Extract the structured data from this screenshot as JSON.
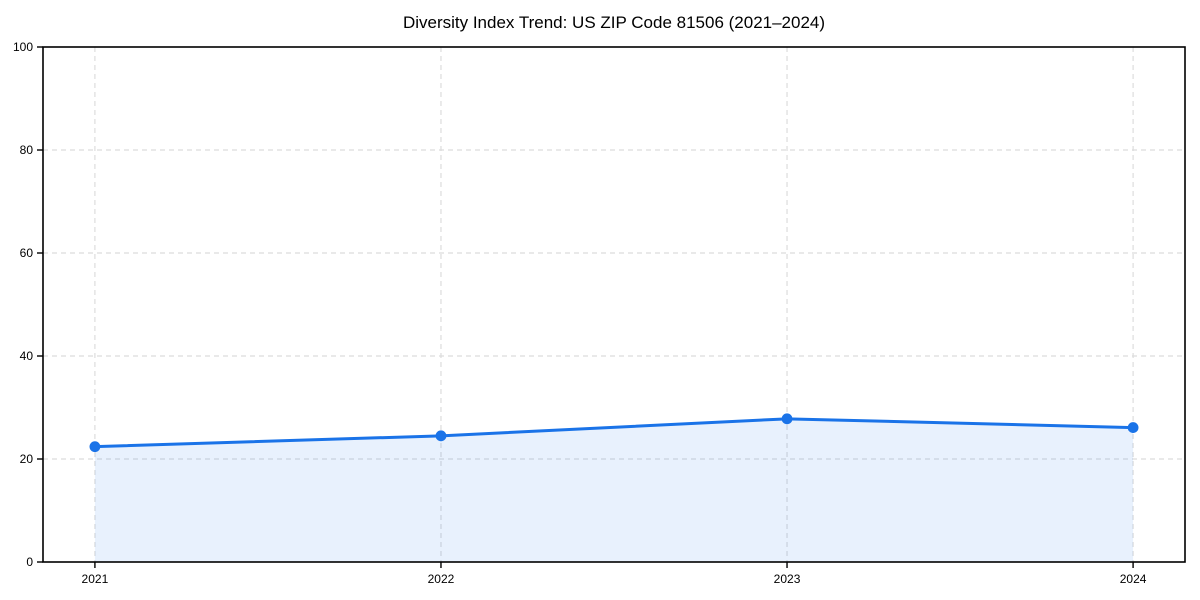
{
  "chart_data": {
    "type": "area",
    "title": "Diversity Index Trend: US ZIP Code 81506 (2021–2024)",
    "x": [
      2021,
      2022,
      2023,
      2024
    ],
    "categories": [
      "2021",
      "2022",
      "2023",
      "2024"
    ],
    "series": [
      {
        "name": "Diversity Index",
        "values": [
          22.4,
          24.5,
          27.8,
          26.1
        ]
      }
    ],
    "xlabel": "",
    "ylabel": "",
    "ylim": [
      0,
      100
    ],
    "yticks": [
      0,
      20,
      40,
      60,
      80,
      100
    ],
    "ytick_labels": [
      "0",
      "20",
      "40",
      "60",
      "80",
      "100"
    ],
    "grid": true,
    "grid_style": "dashed",
    "legend": "none",
    "colors": {
      "line": "#1a73e8",
      "marker": "#1a73e8",
      "fill": "#1a73e8",
      "grid": "#dcdcdc",
      "spine": "#000000",
      "text": "#000000",
      "background": "#ffffff"
    },
    "fill_opacity": 0.1,
    "marker_shape": "circle"
  }
}
